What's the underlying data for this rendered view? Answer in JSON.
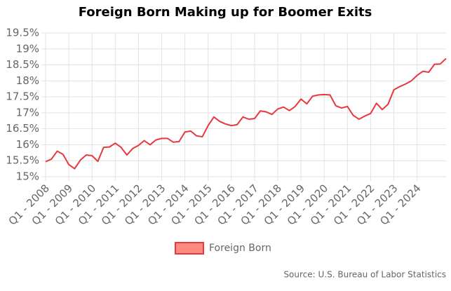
{
  "chart_data": {
    "type": "line",
    "title": "Foreign Born Making up for Boomer Exits",
    "source": "Source: U.S. Bureau of Labor Statistics",
    "categories": [
      "Q1 - 2008",
      null,
      null,
      null,
      "Q1 - 2009",
      null,
      null,
      null,
      "Q1 - 2010",
      null,
      null,
      null,
      "Q1 - 2011",
      null,
      null,
      null,
      "Q1 - 2012",
      null,
      null,
      null,
      "Q1 - 2013",
      null,
      null,
      null,
      "Q1 - 2014",
      null,
      null,
      null,
      "Q1 - 2015",
      null,
      null,
      null,
      "Q1 - 2016",
      null,
      null,
      null,
      "Q1 - 2017",
      null,
      null,
      null,
      "Q1 - 2018",
      null,
      null,
      null,
      "Q1 - 2019",
      null,
      null,
      null,
      "Q1 - 2020",
      null,
      null,
      null,
      "Q1 - 2021",
      null,
      null,
      null,
      "Q1 - 2022",
      null,
      null,
      null,
      "Q1 - 2023",
      null,
      null,
      null,
      "Q1 - 2024",
      null,
      null,
      null,
      null,
      null
    ],
    "series": [
      {
        "name": "Foreign Born",
        "color": "#e8383d",
        "fill": "#ff8a80",
        "values": [
          15.47,
          15.55,
          15.8,
          15.7,
          15.38,
          15.25,
          15.52,
          15.68,
          15.66,
          15.48,
          15.92,
          15.93,
          16.05,
          15.92,
          15.68,
          15.88,
          15.98,
          16.13,
          16.0,
          16.15,
          16.2,
          16.2,
          16.08,
          16.1,
          16.4,
          16.43,
          16.28,
          16.25,
          16.6,
          16.87,
          16.73,
          16.65,
          16.6,
          16.63,
          16.87,
          16.8,
          16.82,
          17.06,
          17.03,
          16.95,
          17.12,
          17.18,
          17.07,
          17.2,
          17.43,
          17.28,
          17.52,
          17.56,
          17.57,
          17.56,
          17.22,
          17.15,
          17.2,
          16.92,
          16.8,
          16.9,
          16.98,
          17.3,
          17.1,
          17.27,
          17.72,
          17.82,
          17.9,
          18.0,
          18.17,
          18.3,
          18.27,
          18.52,
          18.53,
          18.7
        ]
      }
    ],
    "ylim": [
      15,
      19.5
    ],
    "yticks": [
      {
        "value": 15,
        "label": "15%"
      },
      {
        "value": 15.5,
        "label": "15.5%"
      },
      {
        "value": 16,
        "label": "16%"
      },
      {
        "value": 16.5,
        "label": "16.5%"
      },
      {
        "value": 17,
        "label": "17%"
      },
      {
        "value": 17.5,
        "label": "17.5%"
      },
      {
        "value": 18,
        "label": "18%"
      },
      {
        "value": 18.5,
        "label": "18.5%"
      },
      {
        "value": 19,
        "label": "19%"
      },
      {
        "value": 19.5,
        "label": "19.5%"
      }
    ],
    "grid": true
  }
}
